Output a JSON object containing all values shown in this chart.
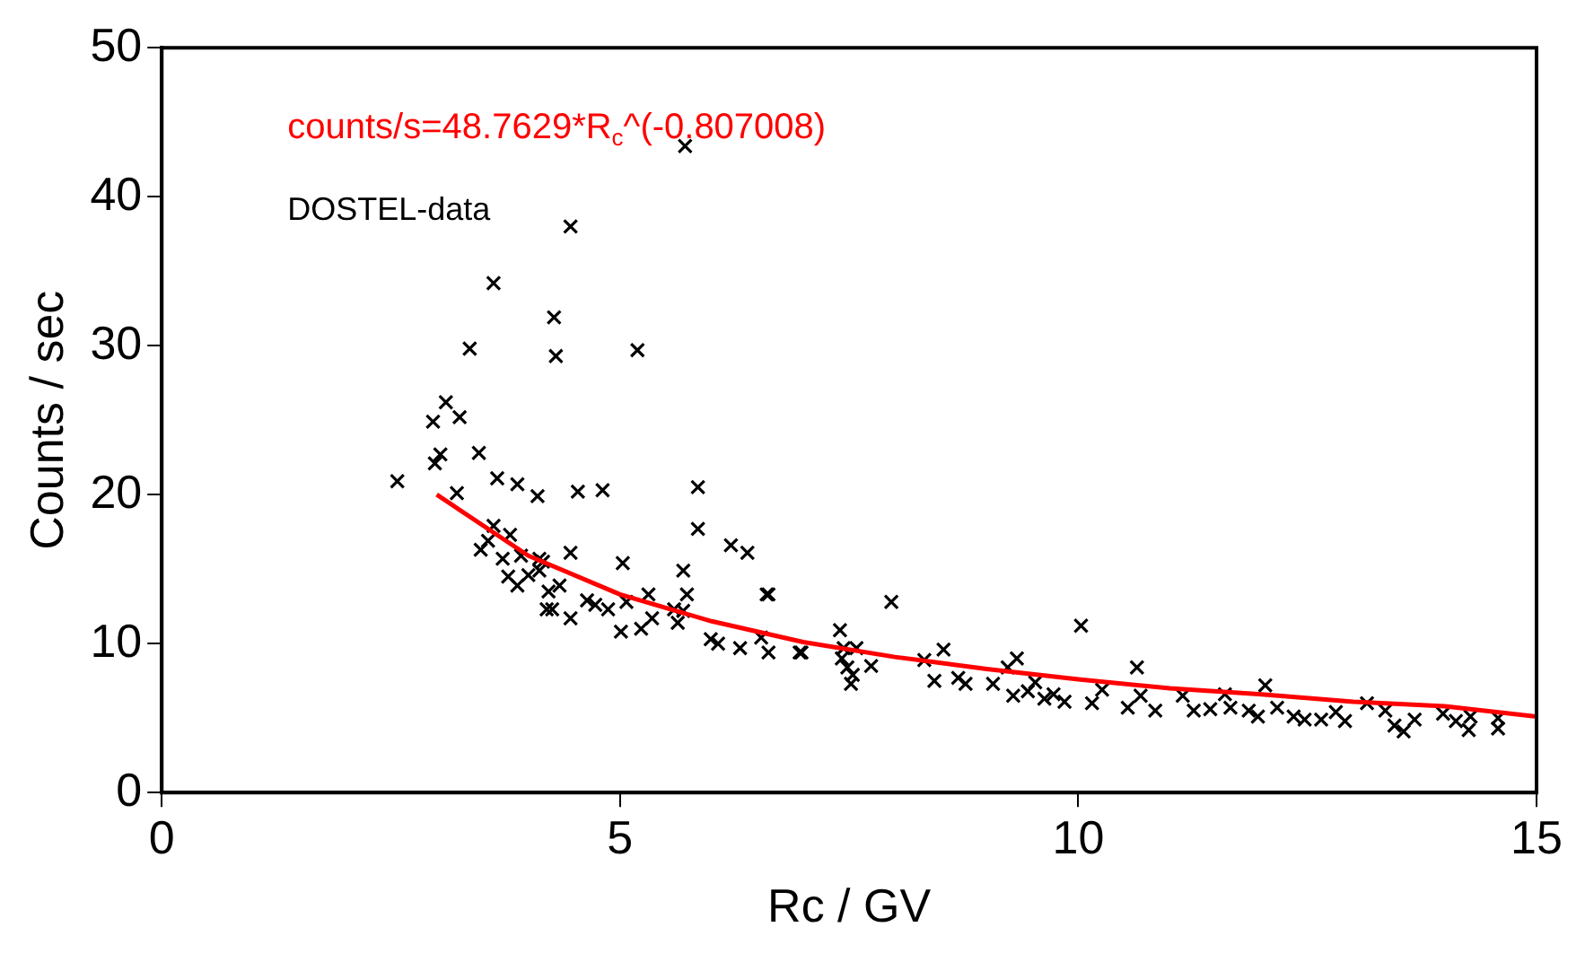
{
  "chart_data": {
    "type": "scatter",
    "xlabel": "Rc / GV",
    "ylabel": "Counts / sec",
    "xlim": [
      0,
      15
    ],
    "xticks": [
      0,
      5,
      10,
      15
    ],
    "ylim": [
      0,
      50
    ],
    "yticks": [
      0,
      10,
      20,
      30,
      40,
      50
    ],
    "grid": false,
    "legend": "top left",
    "series": [
      {
        "name": "counts/s=48.7629*R$_{c}$^(-0.807008)",
        "type": "line",
        "color": "#ff0000",
        "marker": "none",
        "x": [
          3,
          4,
          5,
          6,
          7,
          8,
          9,
          10,
          11,
          12,
          13,
          14,
          15
        ],
        "values": [
          20.0,
          15.9,
          13.3,
          11.5,
          10.1,
          9.1,
          8.3,
          7.6,
          7.0,
          6.6,
          6.1,
          5.8,
          5.1
        ]
      },
      {
        "name": "DOSTEL-data",
        "color": "#000000",
        "marker": "cross",
        "x": [
          5.71,
          4.46,
          3.62,
          4.28,
          3.36,
          4.3,
          5.19,
          3.1,
          2.96,
          3.25,
          3.04,
          2.98,
          3.46,
          2.57,
          3.22,
          3.66,
          3.88,
          4.1,
          4.54,
          4.81,
          5.85,
          5.85,
          6.21,
          6.39,
          6.62,
          3.62,
          3.8,
          3.48,
          3.56,
          3.72,
          3.92,
          4.12,
          4.16,
          3.78,
          3.88,
          4.0,
          4.12,
          4.34,
          4.46,
          4.22,
          4.2,
          4.26,
          4.46,
          4.64,
          4.73,
          4.87,
          5.03,
          5.31,
          5.07,
          5.01,
          5.23,
          5.35,
          5.59,
          5.69,
          5.73,
          5.69,
          5.63,
          5.99,
          6.07,
          6.31,
          6.54,
          6.62,
          6.98,
          6.6,
          7.96,
          10.03,
          10.64,
          12.04,
          6.96,
          7.4,
          7.44,
          7.58,
          7.42,
          7.48,
          7.54,
          7.52,
          7.74,
          8.32,
          8.53,
          8.43,
          8.69,
          8.77,
          9.07,
          9.23,
          9.33,
          9.29,
          9.53,
          9.45,
          9.63,
          9.73,
          9.85,
          10.15,
          10.26,
          10.54,
          10.68,
          10.84,
          11.14,
          11.26,
          11.44,
          11.6,
          11.66,
          11.86,
          11.96,
          12.17,
          12.35,
          12.47,
          12.65,
          12.81,
          12.91,
          13.15,
          13.35,
          13.45,
          13.55,
          13.67,
          13.98,
          14.12,
          14.26,
          14.28,
          14.58,
          14.58
        ],
        "values": [
          43.4,
          38.0,
          34.2,
          31.9,
          29.8,
          29.3,
          29.7,
          26.2,
          24.9,
          25.2,
          22.7,
          22.1,
          22.8,
          20.9,
          20.1,
          21.1,
          20.7,
          19.9,
          20.2,
          20.3,
          20.5,
          17.7,
          16.6,
          16.1,
          13.3,
          17.9,
          17.3,
          16.3,
          16.9,
          15.7,
          15.9,
          15.7,
          15.5,
          14.5,
          13.9,
          14.6,
          14.9,
          13.9,
          16.1,
          13.5,
          12.3,
          12.3,
          11.7,
          12.9,
          12.6,
          12.3,
          15.4,
          13.3,
          12.8,
          10.8,
          11.0,
          11.7,
          12.3,
          12.2,
          13.3,
          14.9,
          11.4,
          10.3,
          10.0,
          9.7,
          10.4,
          9.4,
          9.4,
          13.3,
          12.8,
          11.2,
          8.4,
          7.2,
          9.4,
          10.9,
          9.7,
          9.7,
          9.0,
          8.4,
          7.9,
          7.3,
          8.5,
          8.9,
          9.6,
          7.5,
          7.7,
          7.3,
          7.3,
          8.4,
          9.0,
          6.5,
          7.4,
          6.8,
          6.3,
          6.6,
          6.1,
          6.0,
          6.9,
          5.7,
          6.5,
          5.5,
          6.5,
          5.5,
          5.6,
          6.6,
          5.7,
          5.5,
          5.1,
          5.7,
          5.1,
          4.9,
          4.9,
          5.4,
          4.8,
          6.0,
          5.5,
          4.5,
          4.1,
          4.9,
          5.3,
          4.8,
          4.2,
          5.1,
          5.0,
          4.3
        ]
      }
    ]
  }
}
